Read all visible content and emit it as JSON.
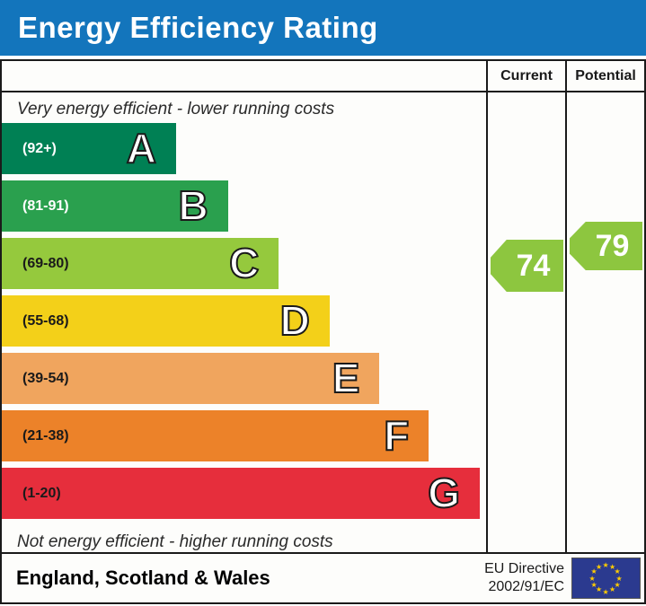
{
  "title": "Energy Efficiency Rating",
  "title_bar_color": "#1375bc",
  "columns": {
    "current": "Current",
    "potential": "Potential"
  },
  "captions": {
    "top": "Very energy efficient - lower running costs",
    "bottom": "Not energy efficient - higher running costs"
  },
  "chart_data": {
    "type": "bar",
    "title": "Energy Efficiency Rating",
    "bands": [
      {
        "letter": "A",
        "range": "(92+)",
        "color": "#008054",
        "width_pct": 36.0,
        "label_color": "#ffffff"
      },
      {
        "letter": "B",
        "range": "(81-91)",
        "color": "#2aa04e",
        "width_pct": 46.7,
        "label_color": "#ffffff"
      },
      {
        "letter": "C",
        "range": "(69-80)",
        "color": "#95c93d",
        "width_pct": 57.2,
        "label_color": "#1a1a1a"
      },
      {
        "letter": "D",
        "range": "(55-68)",
        "color": "#f3d019",
        "width_pct": 67.7,
        "label_color": "#1a1a1a"
      },
      {
        "letter": "E",
        "range": "(39-54)",
        "color": "#f0a55e",
        "width_pct": 78.0,
        "label_color": "#1a1a1a"
      },
      {
        "letter": "F",
        "range": "(21-38)",
        "color": "#ec8229",
        "width_pct": 88.2,
        "label_color": "#1a1a1a"
      },
      {
        "letter": "G",
        "range": "(1-20)",
        "color": "#e62e3c",
        "width_pct": 98.7,
        "label_color": "#1a1a1a"
      }
    ],
    "current": {
      "value": 74,
      "band": "C",
      "color": "#8dc63f"
    },
    "potential": {
      "value": 79,
      "band": "C",
      "color": "#8dc63f"
    }
  },
  "footer": {
    "region": "England, Scotland & Wales",
    "directive_line1": "EU Directive",
    "directive_line2": "2002/91/EC",
    "eu_flag": {
      "background": "#2b3a8f",
      "star_color": "#ffcc00",
      "star_count": 12
    }
  }
}
